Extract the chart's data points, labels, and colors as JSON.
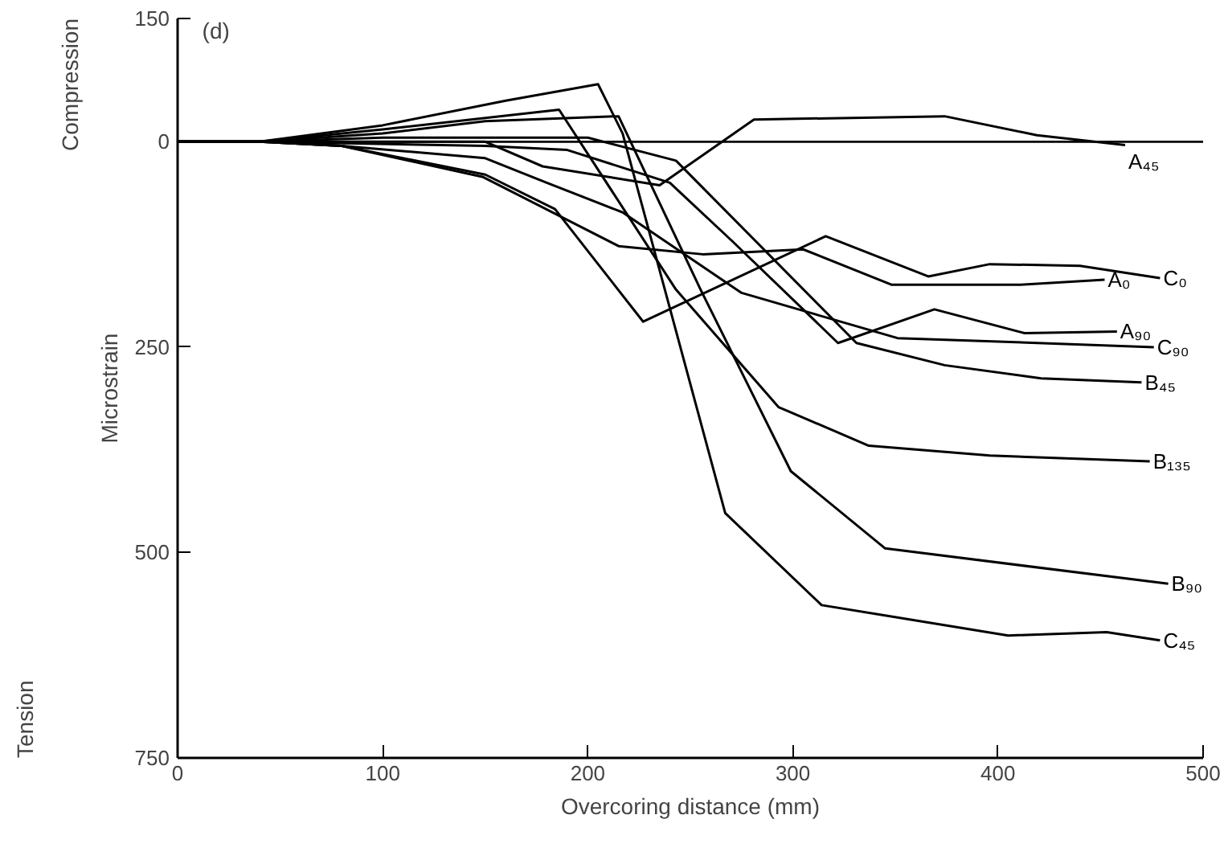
{
  "chart_data": {
    "type": "line",
    "xlabel": "Overcoring distance (mm)",
    "ylabel": "Microstrain",
    "annotations": [
      "(d)",
      "Compression",
      "Tension"
    ],
    "xlim": [
      0,
      500
    ],
    "xticks": [
      0,
      100,
      200,
      300,
      400,
      500
    ],
    "ylim": [
      750,
      -150
    ],
    "yticks": [
      {
        "value": -150,
        "label": "150"
      },
      0,
      250,
      500,
      750
    ],
    "grid": false,
    "marker": "none",
    "line_style": "solid",
    "ref_lines": [
      {
        "axis": "y",
        "value": 0,
        "label": null,
        "color": "#000000"
      }
    ],
    "series": [
      {
        "name": "A₄₅",
        "color": "#000000",
        "x": [
          0,
          40,
          150,
          178,
          235,
          281,
          374,
          419,
          462
        ],
        "values": [
          0,
          0,
          0,
          30,
          53,
          -27,
          -31,
          -8,
          4
        ]
      },
      {
        "name": "C₀",
        "color": "#000000",
        "x": [
          0,
          40,
          80,
          150,
          184,
          227,
          316,
          366,
          396,
          440,
          479
        ],
        "values": [
          0,
          0,
          5,
          40,
          82,
          219,
          115,
          164,
          149,
          151,
          166
        ]
      },
      {
        "name": "A₀",
        "color": "#000000",
        "x": [
          0,
          40,
          80,
          149,
          215,
          256,
          305,
          348,
          411,
          452
        ],
        "values": [
          0,
          0,
          5,
          43,
          127,
          137,
          131,
          174,
          174,
          168
        ]
      },
      {
        "name": "A₉₀",
        "color": "#000000",
        "x": [
          0,
          40,
          150,
          190,
          240,
          270,
          322,
          369,
          413,
          458
        ],
        "values": [
          0,
          0,
          5,
          10,
          50,
          120,
          245,
          204,
          233,
          231
        ]
      },
      {
        "name": "C₉₀",
        "color": "#000000",
        "x": [
          0,
          40,
          80,
          150,
          180,
          217,
          275,
          351,
          476
        ],
        "values": [
          0,
          0,
          5,
          20,
          50,
          86,
          184,
          239,
          250
        ]
      },
      {
        "name": "B₄₅",
        "color": "#000000",
        "x": [
          0,
          40,
          100,
          200,
          243,
          331,
          374,
          421,
          470
        ],
        "values": [
          0,
          0,
          -5,
          -5,
          23,
          245,
          272,
          288,
          293
        ]
      },
      {
        "name": "B₁₃₅",
        "color": "#000000",
        "x": [
          0,
          40,
          100,
          186,
          243,
          293,
          337,
          396,
          474
        ],
        "values": [
          0,
          0,
          -15,
          -39,
          180,
          323,
          370,
          382,
          389
        ]
      },
      {
        "name": "B₉₀",
        "color": "#000000",
        "x": [
          0,
          40,
          100,
          150,
          215,
          255,
          299,
          345,
          483
        ],
        "values": [
          0,
          0,
          -10,
          -25,
          -31,
          180,
          401,
          495,
          538
        ]
      },
      {
        "name": "C₄₅",
        "color": "#000000",
        "x": [
          0,
          40,
          100,
          160,
          205,
          217,
          267,
          314,
          405,
          453,
          479
        ],
        "values": [
          0,
          0,
          -20,
          -50,
          -70,
          -10,
          452,
          564,
          601,
          597,
          607
        ]
      }
    ]
  }
}
